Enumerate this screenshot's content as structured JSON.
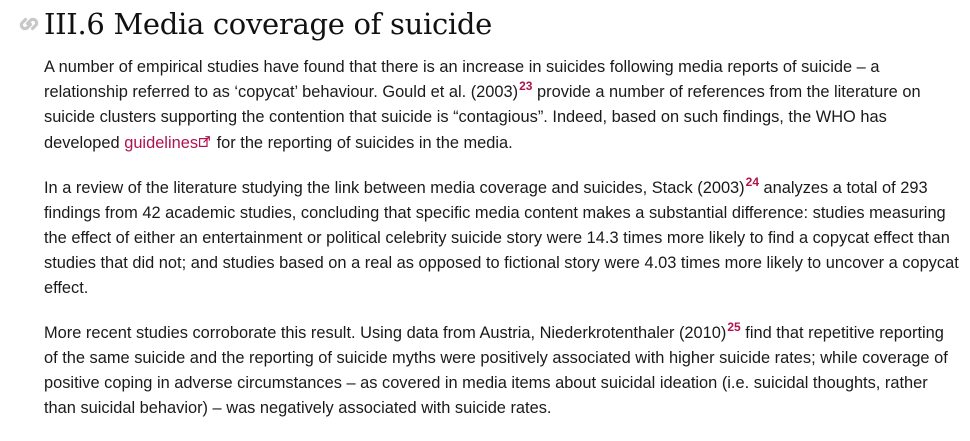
{
  "section": {
    "heading": "III.6 Media coverage of suicide",
    "anchor_icon": "link-icon",
    "colors": {
      "link": "#b0124e",
      "text": "#1a1a1a",
      "anchor_icon": "#c8c8c8"
    }
  },
  "paragraphs": [
    {
      "parts": [
        "A number of empirical studies have found that there is an increase in suicides following media reports of suicide – a relationship referred to as ‘copycat’ behaviour. Gould et al. (2003)",
        "23",
        " provide a number of references from the literature on suicide clusters supporting the contention that suicide is “contagious”. Indeed, based on such findings, the WHO has developed ",
        "guidelines",
        " for the reporting of suicides in the media."
      ]
    },
    {
      "parts": [
        "In a review of the literature studying the link between media coverage and suicides, Stack (2003)",
        "24",
        " analyzes a total of 293 findings from 42 academic studies, concluding that specific media content makes a substantial difference: studies measuring the effect of either an entertainment or political celebrity suicide story were 14.3 times more likely to find a copycat effect than studies that did not; and studies based on a real as opposed to fictional story were 4.03 times more likely to uncover a copycat effect."
      ]
    },
    {
      "parts": [
        "More recent studies corroborate this result. Using data from Austria, Niederkrotenthaler (2010)",
        "25",
        " find that repetitive reporting of the same suicide and the reporting of suicide myths were positively associated with higher suicide rates; while coverage of positive coping in adverse circumstances – as covered in media items about suicidal ideation (i.e. suicidal thoughts, rather than suicidal behavior) – was negatively associated with suicide rates."
      ]
    }
  ],
  "external_link_icon": "external-link-icon"
}
